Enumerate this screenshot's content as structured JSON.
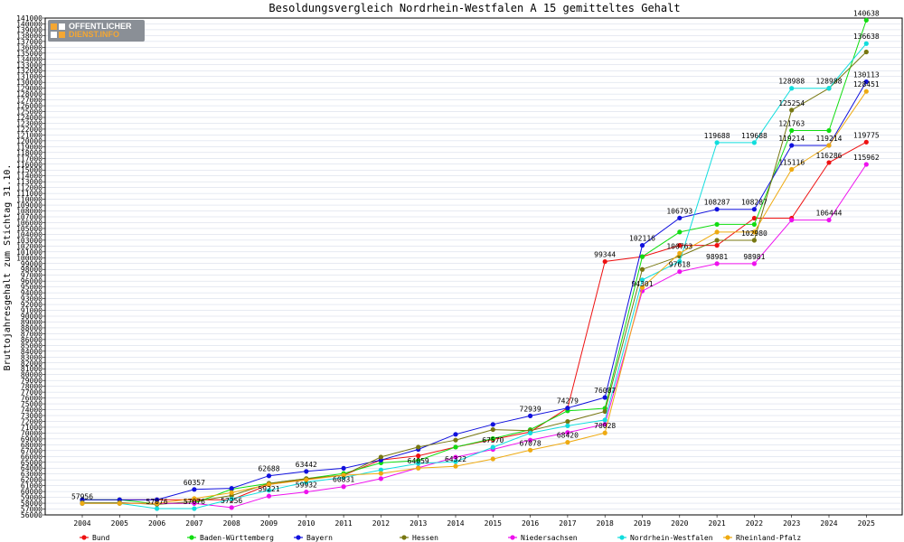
{
  "brand": {
    "line1": "OFFENTLICHER",
    "line2": "DIENST.INFO"
  },
  "colors": {
    "axis": "#000000",
    "grid": "#cfd6e6",
    "frame": "#000000"
  },
  "chart_data": {
    "type": "line",
    "title": "Besoldungsvergleich Nordrhein-Westfalen A 15 gemitteltes Gehalt",
    "xlabel": "",
    "ylabel": "Bruttojahresgehalt zum Stichtag 31.10.",
    "x": [
      "2004",
      "2005",
      "2006",
      "2007",
      "2008",
      "2009",
      "2010",
      "2011",
      "2012",
      "2013",
      "2014",
      "2015",
      "2016",
      "2017",
      "2018",
      "2019",
      "2020",
      "2021",
      "2022",
      "2023",
      "2024",
      "2025"
    ],
    "ylim": [
      56000,
      141000
    ],
    "ytick_step": 1000,
    "grid": true,
    "legend": "bottom",
    "series": [
      {
        "name": "Bund",
        "color": "#ee1111",
        "values": [
          58589,
          58589,
          58589,
          58589,
          58589,
          61200,
          62100,
          62806,
          65400,
          66100,
          67600,
          68900,
          70200,
          74279,
          99344,
          100181,
          102116,
          102116,
          106763,
          106763,
          116286,
          119775
        ]
      },
      {
        "name": "Baden-Württemberg",
        "color": "#11dd11",
        "values": [
          58589,
          58589,
          57900,
          58000,
          60400,
          61400,
          62200,
          63100,
          64900,
          65300,
          67600,
          69064,
          70591,
          73800,
          74235,
          100181,
          104389,
          105700,
          105700,
          121763,
          121763,
          140638
        ]
      },
      {
        "name": "Bayern",
        "color": "#1111dd",
        "values": [
          58589,
          58589,
          58589,
          60357,
          60550,
          62688,
          63442,
          63976,
          65375,
          67200,
          69787,
          71480,
          72939,
          74279,
          76087,
          102116,
          106793,
          108287,
          108287,
          119214,
          119214,
          130113
        ]
      },
      {
        "name": "Hessen",
        "color": "#777711",
        "values": [
          58100,
          58100,
          57800,
          58300,
          59300,
          61400,
          62200,
          62800,
          65900,
          67600,
          68800,
          70596,
          70400,
          71980,
          73694,
          98000,
          100250,
          102980,
          102980,
          125254,
          128988,
          135204
        ]
      },
      {
        "name": "Niedersachsen",
        "color": "#ee11ee",
        "values": [
          57956,
          57956,
          57956,
          57956,
          57256,
          59221,
          59932,
          60831,
          62200,
          64059,
          65880,
          67200,
          68800,
          70100,
          71530,
          94301,
          97618,
          98981,
          98981,
          106444,
          106444,
          115962
        ]
      },
      {
        "name": "Nordrhein-Westfalen",
        "color": "#11dddd",
        "values": [
          57956,
          57956,
          57076,
          57076,
          58700,
          60200,
          61600,
          62400,
          63700,
          64800,
          65100,
          67570,
          70000,
          71240,
          72242,
          96201,
          99372,
          119688,
          119688,
          128988,
          128988,
          136638
        ]
      },
      {
        "name": "Rheinland-Pfalz",
        "color": "#eeaa11",
        "values": [
          57956,
          57956,
          57956,
          58800,
          59800,
          61200,
          62000,
          62800,
          63100,
          64000,
          64322,
          65570,
          67078,
          68420,
          70028,
          94900,
          100763,
          104388,
          104388,
          115116,
          119214,
          128451
        ]
      }
    ],
    "data_labels": [
      {
        "series": 0,
        "x": "2018",
        "text": "99344"
      },
      {
        "series": 0,
        "x": "2024",
        "text": "116286"
      },
      {
        "series": 0,
        "x": "2025",
        "text": "119775"
      },
      {
        "series": 1,
        "x": "2023",
        "text": "121763"
      },
      {
        "series": 1,
        "x": "2025",
        "text": "140638"
      },
      {
        "series": 2,
        "x": "2007",
        "text": "60357"
      },
      {
        "series": 2,
        "x": "2009",
        "text": "62688"
      },
      {
        "series": 2,
        "x": "2010",
        "text": "63442"
      },
      {
        "series": 2,
        "x": "2016",
        "text": "72939"
      },
      {
        "series": 2,
        "x": "2017",
        "text": "74279"
      },
      {
        "series": 2,
        "x": "2018",
        "text": "76087"
      },
      {
        "series": 2,
        "x": "2019",
        "text": "102116"
      },
      {
        "series": 2,
        "x": "2020",
        "text": "106793"
      },
      {
        "series": 2,
        "x": "2021",
        "text": "108287"
      },
      {
        "series": 2,
        "x": "2022",
        "text": "108287"
      },
      {
        "series": 2,
        "x": "2023",
        "text": "119214"
      },
      {
        "series": 2,
        "x": "2024",
        "text": "119214"
      },
      {
        "series": 2,
        "x": "2025",
        "text": "130113"
      },
      {
        "series": 3,
        "x": "2022",
        "text": "102980"
      },
      {
        "series": 3,
        "x": "2023",
        "text": "125254"
      },
      {
        "series": 3,
        "x": "2024",
        "text": "128988"
      },
      {
        "series": 4,
        "x": "2004",
        "text": "57956"
      },
      {
        "series": 4,
        "x": "2008",
        "text": "57256"
      },
      {
        "series": 4,
        "x": "2009",
        "text": "59221"
      },
      {
        "series": 4,
        "x": "2010",
        "text": "59932"
      },
      {
        "series": 4,
        "x": "2011",
        "text": "60831"
      },
      {
        "series": 4,
        "x": "2013",
        "text": "64059"
      },
      {
        "series": 4,
        "x": "2019",
        "text": "94301"
      },
      {
        "series": 4,
        "x": "2020",
        "text": "97618"
      },
      {
        "series": 4,
        "x": "2021",
        "text": "98981"
      },
      {
        "series": 4,
        "x": "2022",
        "text": "98981"
      },
      {
        "series": 4,
        "x": "2024",
        "text": "106444"
      },
      {
        "series": 4,
        "x": "2025",
        "text": "115962"
      },
      {
        "series": 5,
        "x": "2006",
        "text": "57076"
      },
      {
        "series": 5,
        "x": "2007",
        "text": "57076"
      },
      {
        "series": 5,
        "x": "2015",
        "text": "67570"
      },
      {
        "series": 5,
        "x": "2021",
        "text": "119688"
      },
      {
        "series": 5,
        "x": "2022",
        "text": "119688"
      },
      {
        "series": 5,
        "x": "2023",
        "text": "128988"
      },
      {
        "series": 5,
        "x": "2025",
        "text": "136638"
      },
      {
        "series": 6,
        "x": "2014",
        "text": "64322"
      },
      {
        "series": 6,
        "x": "2016",
        "text": "67078"
      },
      {
        "series": 6,
        "x": "2017",
        "text": "68420"
      },
      {
        "series": 6,
        "x": "2018",
        "text": "70028"
      },
      {
        "series": 6,
        "x": "2020",
        "text": "100763"
      },
      {
        "series": 6,
        "x": "2023",
        "text": "115116"
      },
      {
        "series": 6,
        "x": "2025",
        "text": "128451"
      }
    ]
  }
}
